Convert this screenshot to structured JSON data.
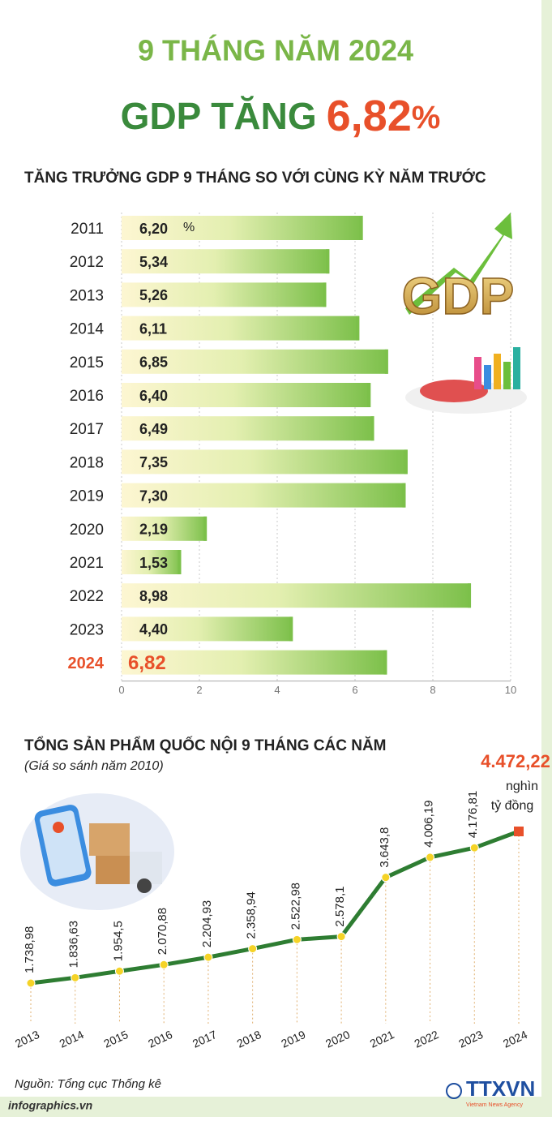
{
  "header": {
    "title": "9 THÁNG NĂM 2024",
    "headline": "GDP TĂNG",
    "headline_value": "6,82",
    "headline_unit": "%"
  },
  "chart_data": [
    {
      "type": "bar",
      "orientation": "horizontal",
      "title": "TĂNG TRƯỞNG GDP 9 THÁNG SO VỚI CÙNG KỲ NĂM TRƯỚC",
      "unit": "%",
      "categories": [
        "2011",
        "2012",
        "2013",
        "2014",
        "2015",
        "2016",
        "2017",
        "2018",
        "2019",
        "2020",
        "2021",
        "2022",
        "2023",
        "2024"
      ],
      "values": [
        6.2,
        5.34,
        5.26,
        6.11,
        6.85,
        6.4,
        6.49,
        7.35,
        7.3,
        2.19,
        1.53,
        8.98,
        4.4,
        6.82
      ],
      "value_labels": [
        "6,20",
        "5,34",
        "5,26",
        "6,11",
        "6,85",
        "6,40",
        "6,49",
        "7,35",
        "7,30",
        "2,19",
        "1,53",
        "8,98",
        "4,40",
        "6,82"
      ],
      "color": "#7cc04a",
      "highlight_category": "2024",
      "highlight_color": "#e8502a",
      "xlim": [
        0,
        10
      ],
      "xticks": [
        0,
        2,
        4,
        6,
        8,
        10
      ],
      "grid": true
    },
    {
      "type": "line",
      "title": "TỔNG SẢN PHẨM QUỐC NỘI 9 THÁNG CÁC NĂM",
      "subtitle": "(Giá so sánh năm 2010)",
      "unit_lines": [
        "nghìn",
        "tỷ đồng"
      ],
      "categories": [
        "2013",
        "2014",
        "2015",
        "2016",
        "2017",
        "2018",
        "2019",
        "2020",
        "2021",
        "2022",
        "2023",
        "2024"
      ],
      "values": [
        1738.98,
        1836.63,
        1954.5,
        2070.88,
        2204.93,
        2358.94,
        2522.98,
        2578.1,
        3643.8,
        4006.19,
        4176.81,
        4472.22
      ],
      "value_labels": [
        "1.738,98",
        "1.836,63",
        "1.954,5",
        "2.070,88",
        "2.204,93",
        "2.358,94",
        "2.522,98",
        "2.578,1",
        "3.643,8",
        "4.006,19",
        "4.176,81",
        "4.472,22"
      ],
      "color": "#2e7d32",
      "marker_color": "#f5d327",
      "highlight_color": "#e8502a"
    }
  ],
  "footer": {
    "source": "Nguồn: Tổng cục Thống kê",
    "site": "infographics.vn",
    "logo": "TTXVN",
    "logo_sub": "Vietnam News Agency"
  }
}
